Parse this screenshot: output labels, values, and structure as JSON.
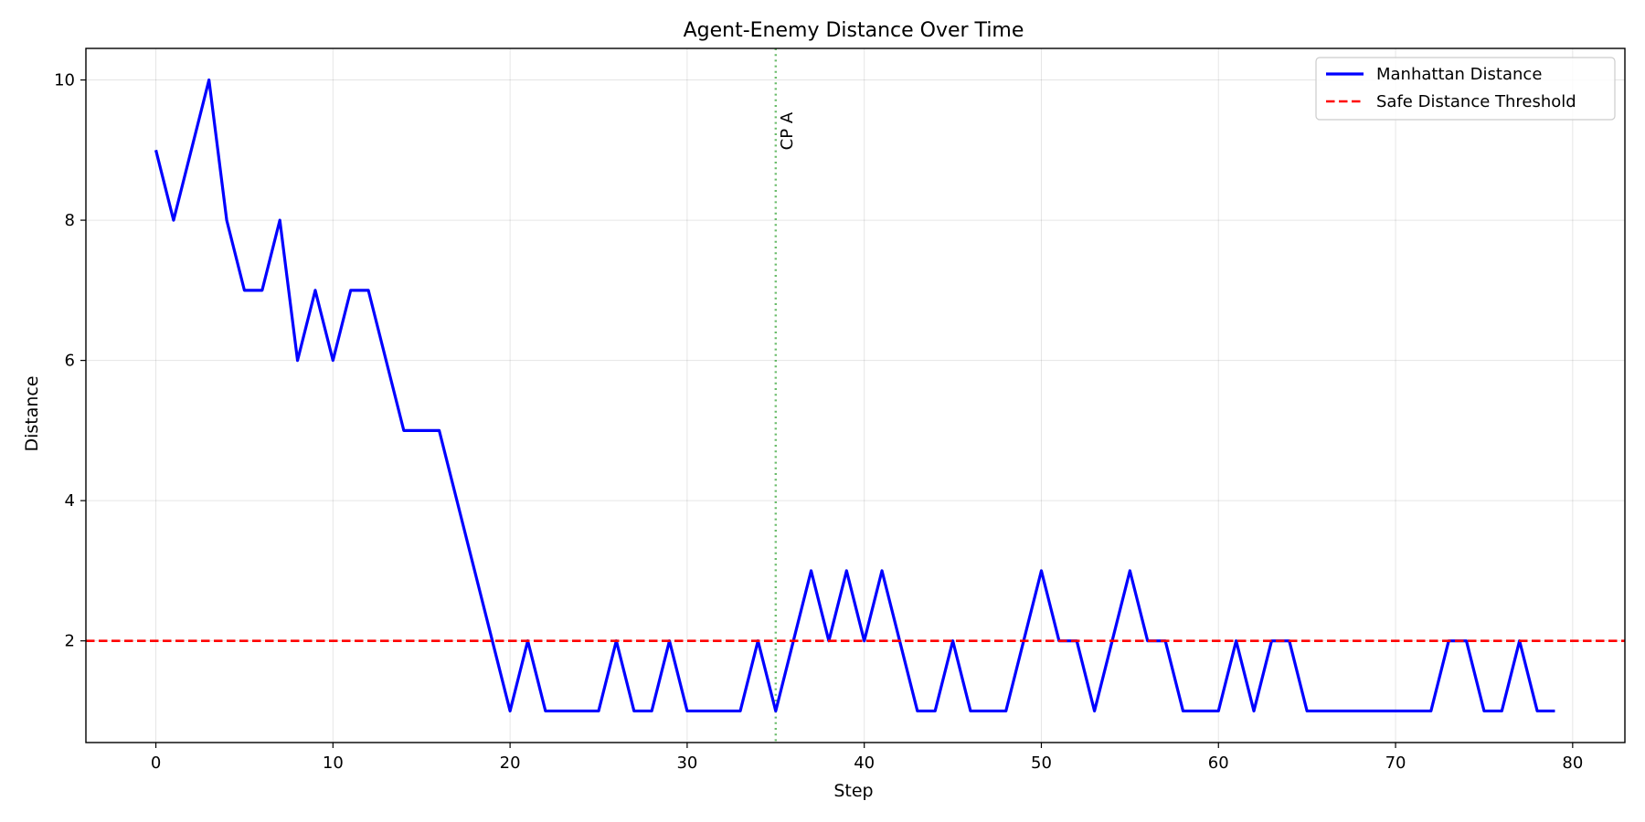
{
  "chart_data": {
    "type": "line",
    "title": "Agent-Enemy Distance Over Time",
    "xlabel": "Step",
    "ylabel": "Distance",
    "xlim": [
      -3.95,
      82.95
    ],
    "ylim": [
      0.55,
      10.45
    ],
    "xticks": [
      0,
      10,
      20,
      30,
      40,
      50,
      60,
      70,
      80
    ],
    "yticks": [
      2,
      4,
      6,
      8,
      10
    ],
    "grid": true,
    "legend_position": "upper right",
    "series": [
      {
        "name": "Manhattan Distance",
        "color": "#0000ff",
        "style": "solid",
        "x": [
          0,
          1,
          2,
          3,
          4,
          5,
          6,
          7,
          8,
          9,
          10,
          11,
          12,
          13,
          14,
          15,
          16,
          17,
          18,
          19,
          20,
          21,
          22,
          23,
          24,
          25,
          26,
          27,
          28,
          29,
          30,
          31,
          32,
          33,
          34,
          35,
          36,
          37,
          38,
          39,
          40,
          41,
          42,
          43,
          44,
          45,
          46,
          47,
          48,
          49,
          50,
          51,
          52,
          53,
          54,
          55,
          56,
          57,
          58,
          59,
          60,
          61,
          62,
          63,
          64,
          65,
          66,
          67,
          68,
          69,
          70,
          71,
          72,
          73,
          74,
          75,
          76,
          77,
          78,
          79
        ],
        "y": [
          9,
          8,
          9,
          10,
          8,
          7,
          7,
          8,
          6,
          7,
          6,
          7,
          7,
          6,
          5,
          5,
          5,
          4,
          3,
          2,
          1,
          2,
          1,
          1,
          1,
          1,
          2,
          1,
          1,
          2,
          1,
          1,
          1,
          1,
          2,
          1,
          2,
          3,
          2,
          3,
          2,
          3,
          2,
          1,
          1,
          2,
          1,
          1,
          1,
          2,
          3,
          2,
          2,
          1,
          2,
          3,
          2,
          2,
          1,
          1,
          1,
          2,
          1,
          2,
          2,
          1,
          1,
          1,
          1,
          1,
          1,
          1,
          1,
          2,
          2,
          1,
          1,
          2,
          1,
          1
        ]
      },
      {
        "name": "Safe Distance Threshold",
        "color": "#ff0000",
        "style": "dashed",
        "y_constant": 2
      }
    ],
    "annotations": [
      {
        "type": "vline",
        "x": 35,
        "color": "#2ca02c",
        "style": "dotted",
        "label": "CP A"
      }
    ]
  }
}
